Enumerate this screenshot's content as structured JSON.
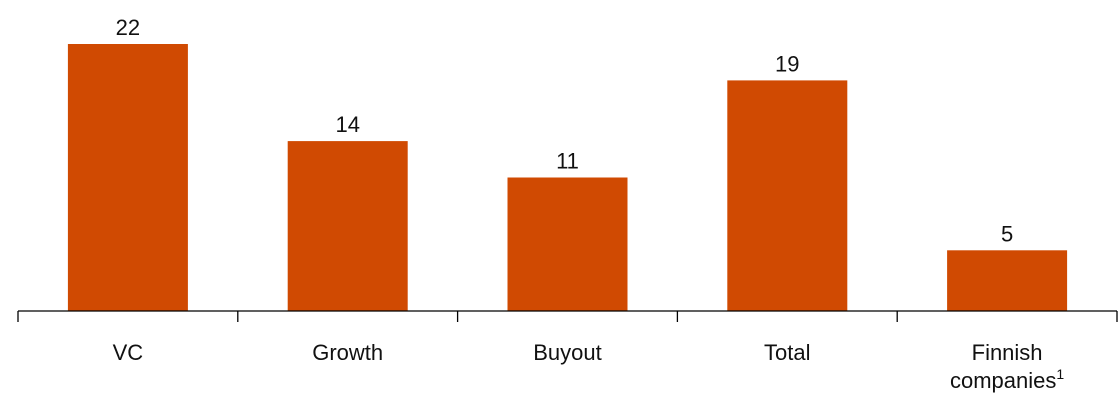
{
  "chart_data": {
    "type": "bar",
    "categories": [
      "VC",
      "Growth",
      "Buyout",
      "Total",
      "Finnish companies"
    ],
    "category_lines": [
      [
        "VC"
      ],
      [
        "Growth"
      ],
      [
        "Buyout"
      ],
      [
        "Total"
      ],
      [
        "Finnish",
        "companies"
      ]
    ],
    "footnote_marker": "1",
    "values": [
      22,
      14,
      11,
      19,
      5
    ],
    "title": "",
    "xlabel": "",
    "ylabel": "",
    "ylim": [
      0,
      22
    ],
    "grid": false,
    "legend": "none",
    "bar_color": "#D04A02",
    "axis_color": "#000000"
  }
}
